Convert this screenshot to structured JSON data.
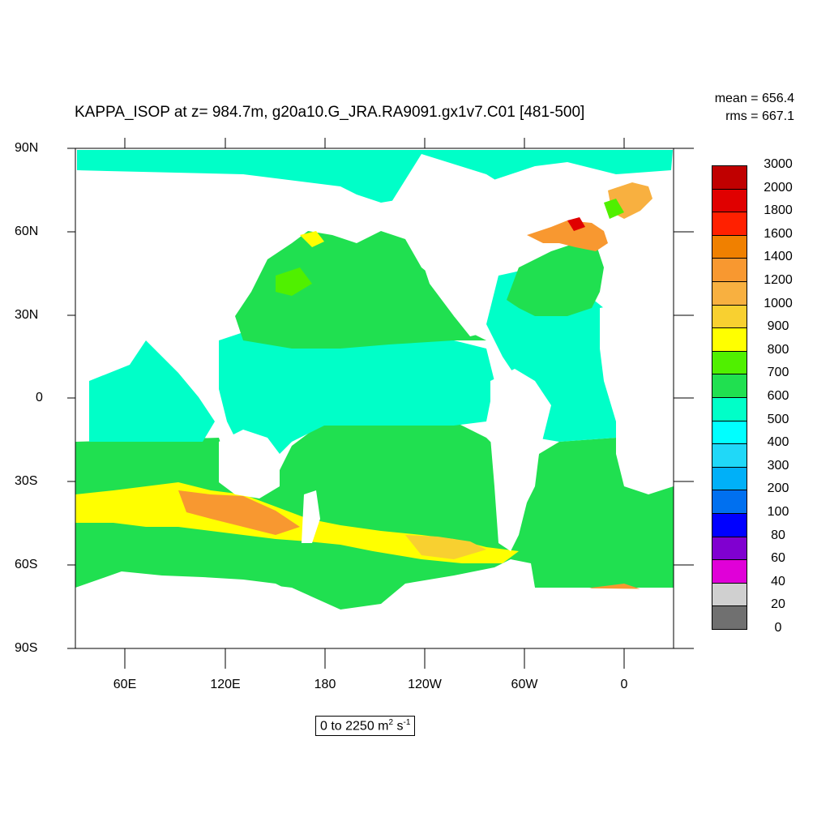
{
  "title": "KAPPA_ISOP at z= 984.7m, g20a10.G_JRA.RA9091.gx1v7.C01 [481-500]",
  "stats": {
    "mean": "mean = 656.4",
    "rms": "rms = 667.1"
  },
  "lat_labels": [
    "90N",
    "60N",
    "30N",
    "0",
    "30S",
    "60S",
    "90S"
  ],
  "lon_labels": [
    "60E",
    "120E",
    "180",
    "120W",
    "60W",
    "0"
  ],
  "range_text": {
    "prefix": "0 to 2250 m",
    "sup1": "2",
    "mid": " s",
    "sup2": "-1"
  },
  "colorbar": {
    "levels": [
      "3000",
      "2000",
      "1800",
      "1600",
      "1400",
      "1200",
      "1000",
      "900",
      "800",
      "700",
      "600",
      "500",
      "400",
      "300",
      "200",
      "100",
      "80",
      "60",
      "40",
      "20",
      "0"
    ],
    "colors": [
      "#c00000",
      "#e00000",
      "#ff2000",
      "#f08000",
      "#f89830",
      "#f8b040",
      "#f8d030",
      "#ffff00",
      "#50f000",
      "#20e050",
      "#00ffc8",
      "#00ffff",
      "#20d8f8",
      "#00b0f8",
      "#0070f0",
      "#0000ff",
      "#8000d0",
      "#e000d8",
      "#d0d0d0",
      "#707070"
    ]
  },
  "land_color": "#ffffff",
  "field_colors": {
    "low": "#00ffc8",
    "mid": "#20e050",
    "high": "#50f000",
    "peak": "#ffff00",
    "orange": "#f8b040",
    "deep_orange": "#f89830",
    "red": "#e00000"
  }
}
